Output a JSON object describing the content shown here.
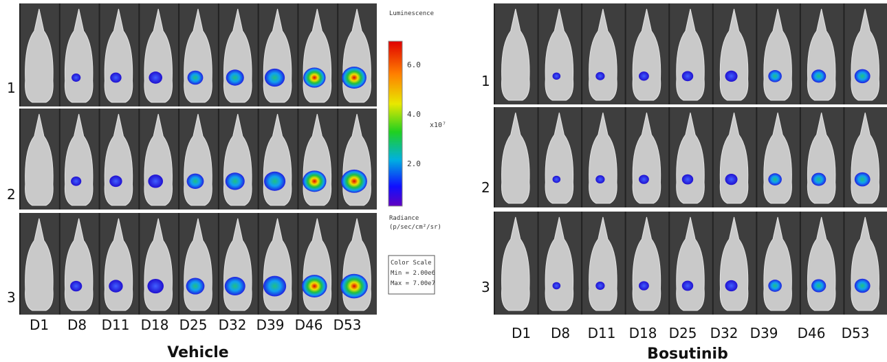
{
  "left_panel": {
    "title": "Vehicle",
    "row_labels": [
      "1",
      "2",
      "3"
    ],
    "day_labels": [
      "D1",
      "D8",
      "D11",
      "D18",
      "D25",
      "D32",
      "D39",
      "D46",
      "D53"
    ]
  },
  "right_panel": {
    "title": "Bosutinib",
    "row_labels": [
      "1",
      "2",
      "3"
    ],
    "day_labels": [
      "D1",
      "D8",
      "D11",
      "D18",
      "D25",
      "D32",
      "D39",
      "D46",
      "D53"
    ]
  },
  "color_scale": {
    "title": "Luminescence",
    "ticks": [
      "6.0",
      "4.0",
      "2.0"
    ],
    "unit": "x10⁷",
    "radiance": "Radiance",
    "radiance_unit": "(p/sec/cm²/sr)",
    "box_title": "Color Scale",
    "min": "Min = 2.00e6",
    "max": "Max = 7.00e7"
  }
}
